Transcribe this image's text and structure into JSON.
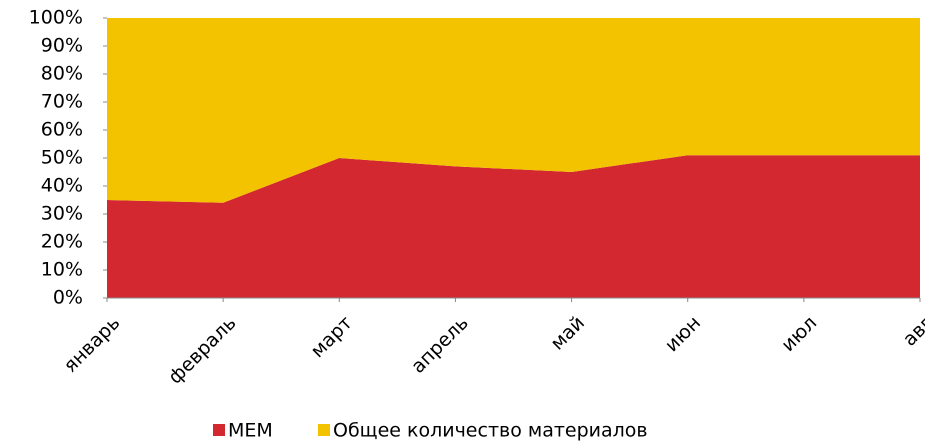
{
  "chart_data": {
    "type": "stacked_area",
    "categories": [
      "январь",
      "февраль",
      "март",
      "апрель",
      "май",
      "июн",
      "июл",
      "авг"
    ],
    "series": [
      {
        "name": "MEM",
        "color": "#d3282f",
        "values": [
          35,
          34,
          50,
          47,
          45,
          51,
          51,
          51
        ]
      },
      {
        "name": "Общее количество материалов",
        "color": "#f3c300",
        "values": [
          65,
          66,
          50,
          53,
          55,
          49,
          49,
          49
        ]
      }
    ],
    "ylim": [
      0,
      100
    ],
    "yticks": [
      {
        "value": 0,
        "label": "0%"
      },
      {
        "value": 10,
        "label": "10%"
      },
      {
        "value": 20,
        "label": "20%"
      },
      {
        "value": 30,
        "label": "30%"
      },
      {
        "value": 40,
        "label": "40%"
      },
      {
        "value": 50,
        "label": "50%"
      },
      {
        "value": 60,
        "label": "60%"
      },
      {
        "value": 70,
        "label": "70%"
      },
      {
        "value": 80,
        "label": "80%"
      },
      {
        "value": 90,
        "label": "90%"
      },
      {
        "value": 100,
        "label": "100%"
      }
    ],
    "legend": "bottom"
  }
}
